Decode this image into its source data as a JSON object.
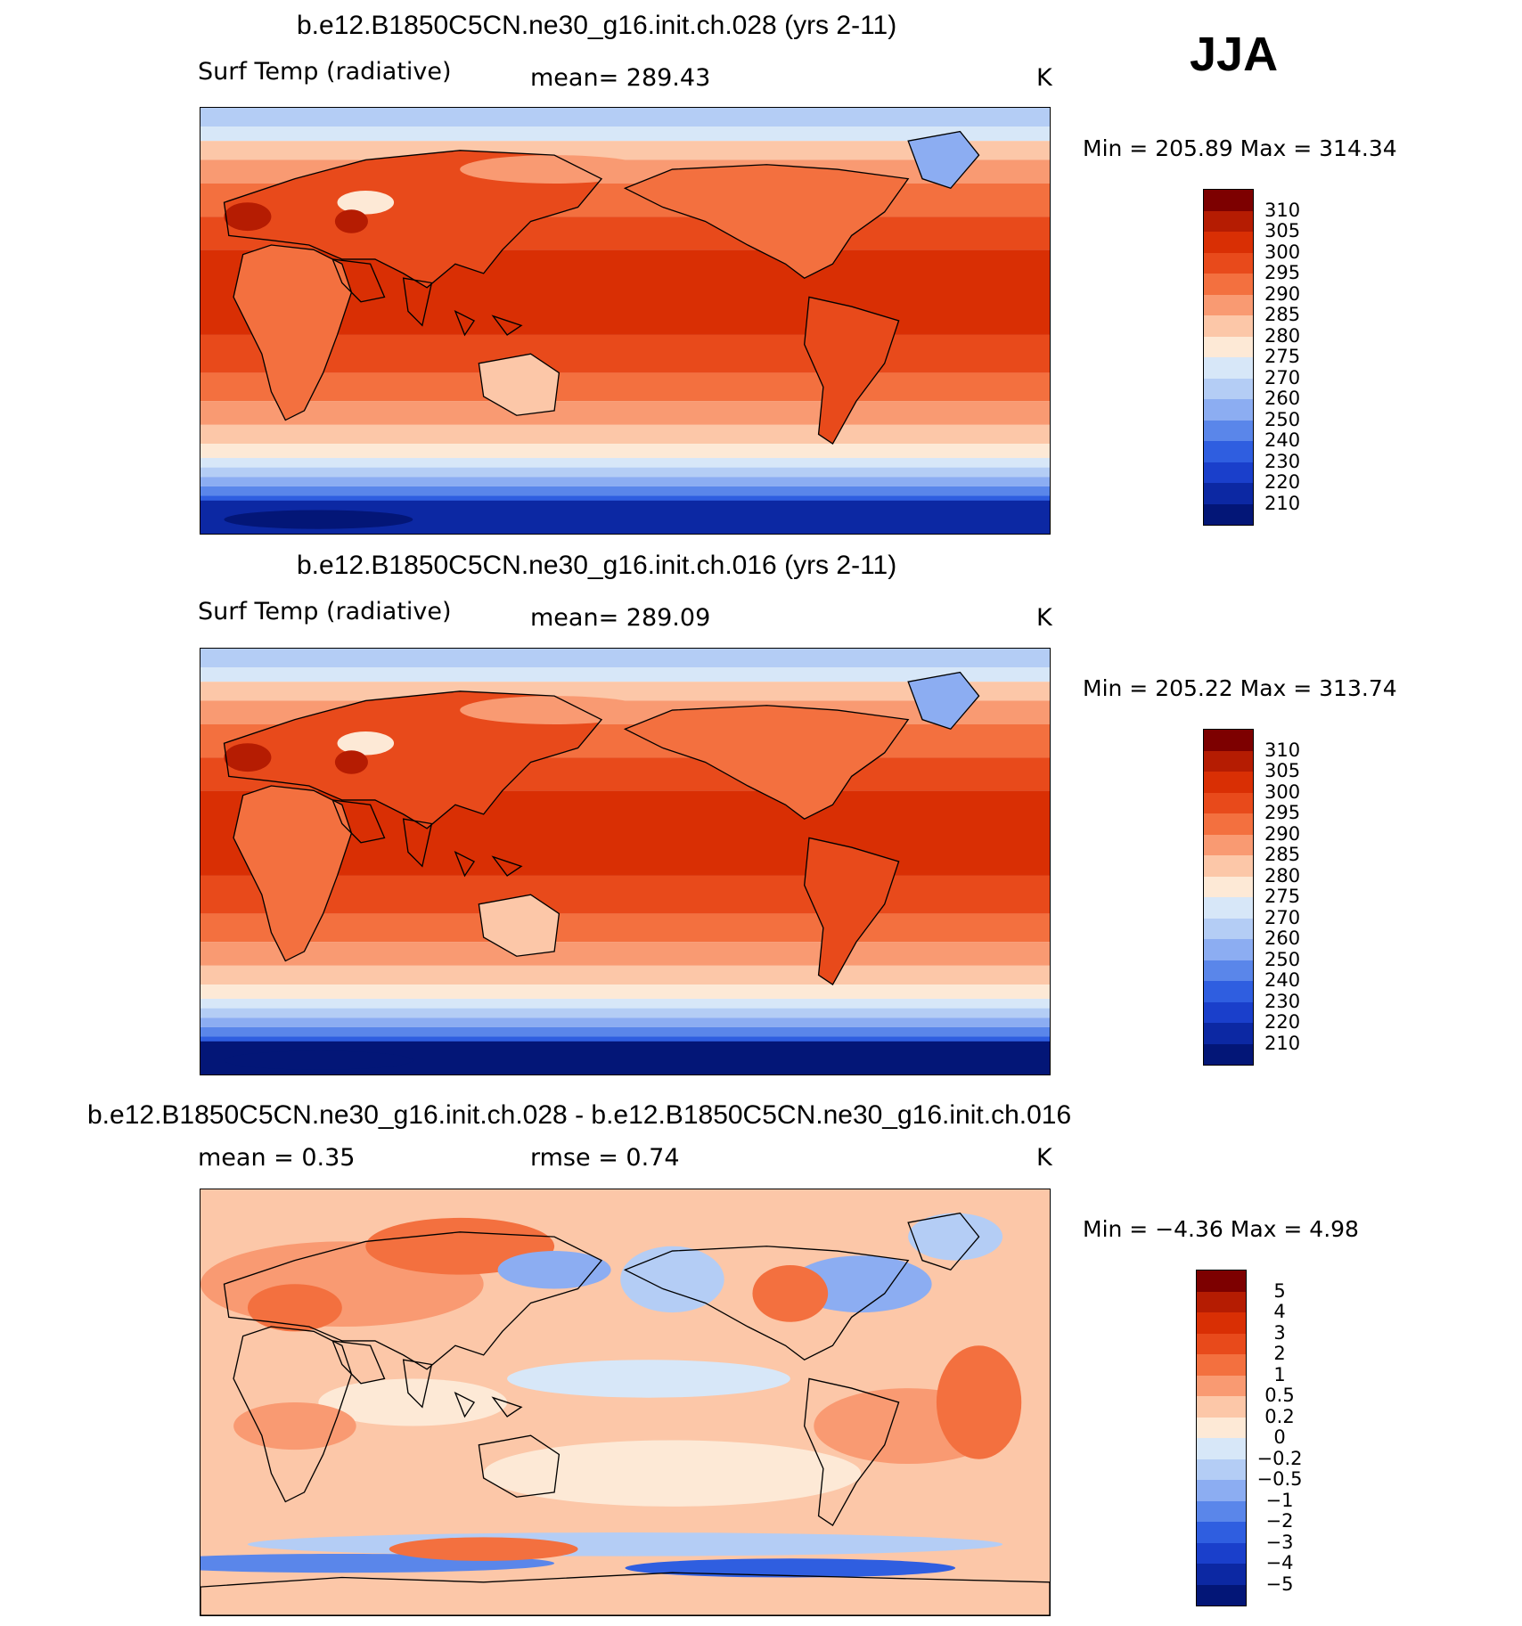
{
  "season": "JJA",
  "panels": [
    {
      "id": "case1",
      "title": "b.e12.B1850C5CN.ne30_g16.init.ch.028 (yrs 2-11)",
      "left_label": "Surf Temp (radiative)",
      "center_label": "mean=  289.43",
      "units": "K",
      "minmax": "Min  =  205.89  Max  =  314.34",
      "palette": "temp",
      "labels": [
        "310",
        "305",
        "300",
        "295",
        "290",
        "285",
        "280",
        "275",
        "270",
        "260",
        "250",
        "240",
        "230",
        "220",
        "210"
      ]
    },
    {
      "id": "case2",
      "title": "b.e12.B1850C5CN.ne30_g16.init.ch.016 (yrs 2-11)",
      "left_label": "Surf Temp (radiative)",
      "center_label": "mean=  289.09",
      "units": "K",
      "minmax": "Min  =  205.22  Max  =  313.74",
      "palette": "temp",
      "labels": [
        "310",
        "305",
        "300",
        "295",
        "290",
        "285",
        "280",
        "275",
        "270",
        "260",
        "250",
        "240",
        "230",
        "220",
        "210"
      ]
    },
    {
      "id": "diff",
      "title": "b.e12.B1850C5CN.ne30_g16.init.ch.028 - b.e12.B1850C5CN.ne30_g16.init.ch.016",
      "left_label": "mean =     0.35",
      "center_label": "rmse =     0.74",
      "units": "K",
      "minmax": "Min  =    −4.36  Max  =      4.98",
      "palette": "diff",
      "labels": [
        "5",
        "4",
        "3",
        "2",
        "1",
        "0.5",
        "0.2",
        "0",
        "−0.2",
        "−0.5",
        "−1",
        "−2",
        "−3",
        "−4",
        "−5"
      ]
    }
  ],
  "colors": {
    "temp": [
      "#7d0000",
      "#b51c02",
      "#d92f04",
      "#e84a1b",
      "#f3703f",
      "#f99a72",
      "#fcc7a8",
      "#fde9d6",
      "#d7e7f8",
      "#b4cdf5",
      "#8cadf2",
      "#5a86ea",
      "#2f5ee0",
      "#1a3fcb",
      "#0c28a3",
      "#031677"
    ],
    "diff": [
      "#7d0000",
      "#b51c02",
      "#d92f04",
      "#e84a1b",
      "#f3703f",
      "#f99a72",
      "#fcc7a8",
      "#fde9d6",
      "#d7e7f8",
      "#b4cdf5",
      "#8cadf2",
      "#5a86ea",
      "#2f5ee0",
      "#1a3fcb",
      "#0c28a3",
      "#031677"
    ]
  }
}
